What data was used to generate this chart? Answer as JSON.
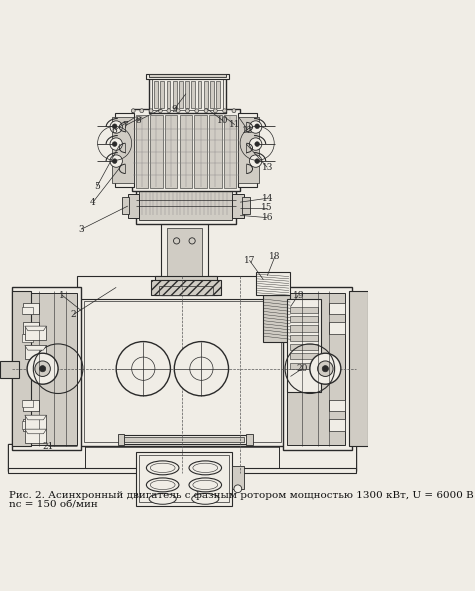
{
  "caption_line1": "Рис. 2. Асинхронный двигатель с фазным ротором мощностью 1300 кВт, U = 6000 В",
  "caption_line2": "nс = 150 об/мин",
  "bg_color": "#f0ede6",
  "line_color": "#2a2a2a",
  "label_color": "#111111",
  "font_size_caption": 7.5,
  "font_size_labels": 6.5
}
